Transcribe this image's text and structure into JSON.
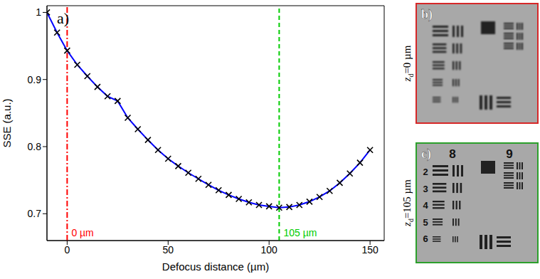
{
  "chart_data": {
    "type": "line",
    "panel_label": "a)",
    "x_label": "Defocus distance (µm)",
    "y_label": "SSE (a.u.)",
    "x": [
      -10,
      -5,
      0,
      5,
      10,
      15,
      20,
      25,
      30,
      35,
      40,
      45,
      50,
      55,
      60,
      65,
      70,
      75,
      80,
      85,
      90,
      95,
      100,
      105,
      110,
      115,
      120,
      125,
      130,
      135,
      140,
      145,
      150
    ],
    "values": [
      1.0,
      0.97,
      0.943,
      0.922,
      0.905,
      0.889,
      0.875,
      0.868,
      0.843,
      0.826,
      0.81,
      0.795,
      0.782,
      0.771,
      0.761,
      0.752,
      0.743,
      0.735,
      0.728,
      0.722,
      0.717,
      0.713,
      0.711,
      0.709,
      0.71,
      0.713,
      0.718,
      0.725,
      0.734,
      0.746,
      0.76,
      0.776,
      0.795
    ],
    "color": "#0000ff",
    "marker": "x",
    "xlim": [
      -10,
      157
    ],
    "ylim": [
      0.66,
      1.01
    ],
    "xticks": [
      0,
      50,
      100,
      150
    ],
    "yticks": [
      0.7,
      0.8,
      0.9,
      1
    ],
    "annotations": [
      {
        "x": 0,
        "label": "0 µm",
        "color": "#ff0000",
        "line_style": "dashdot"
      },
      {
        "x": 105,
        "label": "105 µm",
        "color": "#00cc00",
        "line_style": "dashed"
      }
    ]
  },
  "panels": [
    {
      "label": "b)",
      "caption_symbol": "z",
      "caption_subscript": "d",
      "caption_value": "=0 µm",
      "color": "#d62728"
    },
    {
      "label": "c)",
      "caption_symbol": "z",
      "caption_subscript": "d",
      "caption_value": "=105 µm",
      "color": "#2ca02c",
      "groups": [
        "8",
        "9"
      ],
      "elements": [
        "2",
        "3",
        "4",
        "5",
        "6"
      ]
    }
  ]
}
